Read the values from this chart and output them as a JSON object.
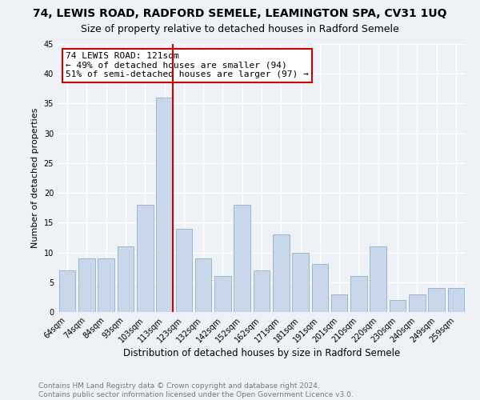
{
  "title": "74, LEWIS ROAD, RADFORD SEMELE, LEAMINGTON SPA, CV31 1UQ",
  "subtitle": "Size of property relative to detached houses in Radford Semele",
  "xlabel": "Distribution of detached houses by size in Radford Semele",
  "ylabel": "Number of detached properties",
  "categories": [
    "64sqm",
    "74sqm",
    "84sqm",
    "93sqm",
    "103sqm",
    "113sqm",
    "123sqm",
    "132sqm",
    "142sqm",
    "152sqm",
    "162sqm",
    "171sqm",
    "181sqm",
    "191sqm",
    "201sqm",
    "210sqm",
    "220sqm",
    "230sqm",
    "240sqm",
    "249sqm",
    "259sqm"
  ],
  "values": [
    7,
    9,
    9,
    11,
    18,
    36,
    14,
    9,
    6,
    18,
    7,
    13,
    10,
    8,
    3,
    6,
    11,
    2,
    3,
    4,
    4
  ],
  "bar_color": "#c8d8ea",
  "bar_edgecolor": "#9ab8cc",
  "vline_color": "#cc0000",
  "annotation_text": "74 LEWIS ROAD: 121sqm\n← 49% of detached houses are smaller (94)\n51% of semi-detached houses are larger (97) →",
  "annotation_box_color": "#ffffff",
  "annotation_box_edgecolor": "#cc0000",
  "ylim": [
    0,
    45
  ],
  "yticks": [
    0,
    5,
    10,
    15,
    20,
    25,
    30,
    35,
    40,
    45
  ],
  "footer": "Contains HM Land Registry data © Crown copyright and database right 2024.\nContains public sector information licensed under the Open Government Licence v3.0.",
  "bg_color": "#eef2f7",
  "grid_color": "#ffffff",
  "title_fontsize": 10,
  "subtitle_fontsize": 9,
  "xlabel_fontsize": 8.5,
  "ylabel_fontsize": 8,
  "tick_fontsize": 7,
  "annotation_fontsize": 8,
  "footer_fontsize": 6.5
}
